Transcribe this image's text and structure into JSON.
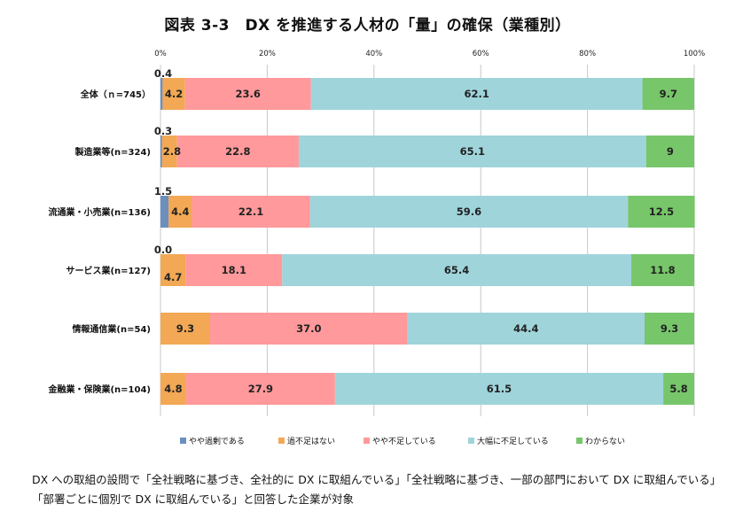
{
  "chart_data": {
    "type": "bar",
    "orientation": "horizontal",
    "stacked": true,
    "title": "図表 3-3　DX を推進する人材の「量」の確保（業種別）",
    "categories": [
      "全体（ｎ=745）",
      "製造業等(n=324)",
      "流通業・小売業(n=136)",
      "サービス業(n=127)",
      "情報通信業(n=54)",
      "金融業・保険業(n=104)"
    ],
    "series": [
      {
        "name": "やや過剰である",
        "color": "#6B8FBF",
        "values": [
          0.4,
          0.3,
          1.5,
          0.0,
          null,
          null
        ],
        "labels": [
          "0.4",
          "0.3",
          "1.5",
          "0.0",
          "",
          ""
        ]
      },
      {
        "name": "過不足はない",
        "color": "#F2A854",
        "values": [
          4.2,
          2.8,
          4.4,
          4.7,
          9.3,
          4.8
        ],
        "labels": [
          "4.2",
          "2.8",
          "4.4",
          "4.7",
          "9.3",
          "4.8"
        ]
      },
      {
        "name": "やや不足している",
        "color": "#FF999B",
        "values": [
          23.6,
          22.8,
          22.1,
          18.1,
          37.0,
          27.9
        ],
        "labels": [
          "23.6",
          "22.8",
          "22.1",
          "18.1",
          "37.0",
          "27.9"
        ]
      },
      {
        "name": "大幅に不足している",
        "color": "#9FD4DB",
        "values": [
          62.1,
          65.1,
          59.6,
          65.4,
          44.4,
          61.5
        ],
        "labels": [
          "62.1",
          "65.1",
          "59.6",
          "65.4",
          "44.4",
          "61.5"
        ]
      },
      {
        "name": "わからない",
        "color": "#77C66A",
        "values": [
          9.7,
          9,
          12.5,
          11.8,
          9.3,
          5.8
        ],
        "labels": [
          "9.7",
          "9",
          "12.5",
          "11.8",
          "9.3",
          "5.8"
        ]
      }
    ],
    "xlim": [
      0,
      100
    ],
    "xticks": [
      "0%",
      "20%",
      "40%",
      "60%",
      "80%",
      "100%"
    ],
    "grid": true,
    "legend_position": "bottom"
  },
  "notes": [
    "DX への取組の設問で「全社戦略に基づき、全社的に DX に取組んでいる」「全社戦略に基づき、一部の部門において DX に取組んでいる」",
    "「部署ごとに個別で DX に取組んでいる」と回答した企業が対象"
  ]
}
